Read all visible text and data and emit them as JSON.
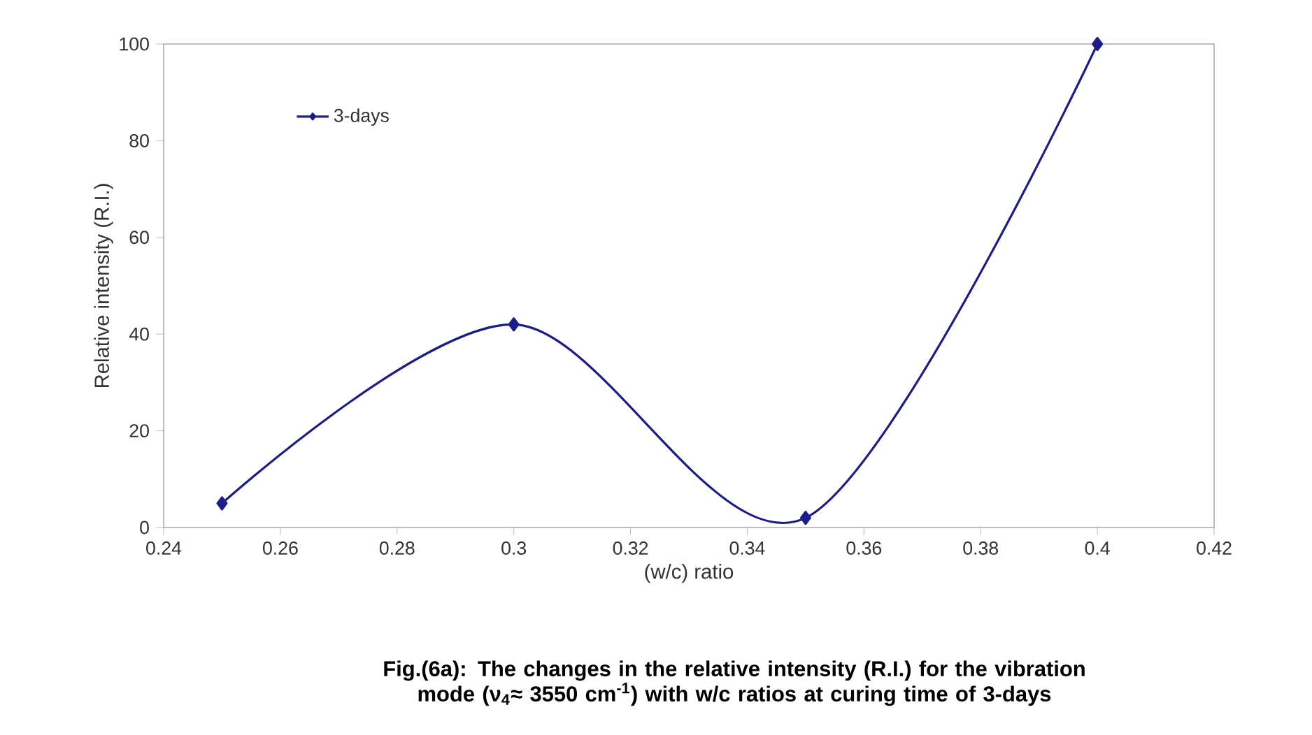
{
  "chart_data": {
    "type": "line",
    "xlabel": "(w/c) ratio",
    "ylabel": "Relative  intensity (R.I.)",
    "x": [
      0.25,
      0.3,
      0.35,
      0.4
    ],
    "series": [
      {
        "name": "3-days",
        "color": "#1c1c8c",
        "values": [
          5,
          42,
          2,
          100
        ]
      }
    ],
    "xlim": [
      0.24,
      0.42
    ],
    "xticks": [
      0.24,
      0.26,
      0.28,
      0.3,
      0.32,
      0.34,
      0.36,
      0.38,
      0.4,
      0.42
    ],
    "ylim": [
      0,
      100
    ],
    "yticks": [
      0,
      20,
      40,
      60,
      80,
      100
    ],
    "marker": "diamond",
    "line_style": "solid",
    "grid": false,
    "legend": "top left",
    "annotations": [
      "**Fig.(6a): The changes in the relative intensity (R.I.) for the vibration mode (ν$_{4}$≈  3550 cm$^{-1}$) with w/c ratios at  curing time of 3-days**"
    ]
  }
}
